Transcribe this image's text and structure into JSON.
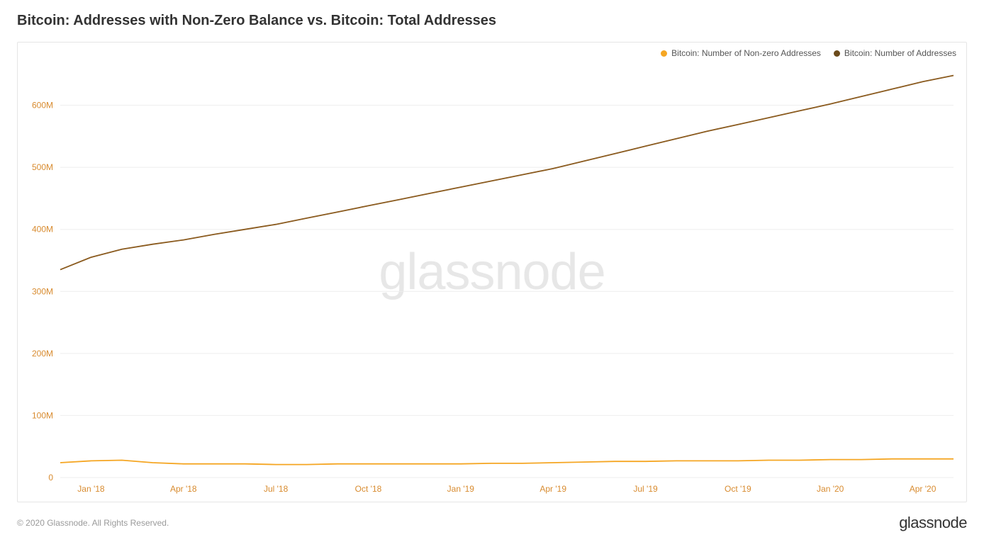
{
  "title": "Bitcoin: Addresses with Non-Zero Balance vs. Bitcoin: Total Addresses",
  "title_fontsize": 20,
  "title_color": "#333333",
  "watermark_text": "glassnode",
  "copyright": "© 2020 Glassnode. All Rights Reserved.",
  "brand": "glassnode",
  "chart": {
    "type": "line",
    "background_color": "#ffffff",
    "border_color": "#e5e5e5",
    "grid_color": "#eeeeee",
    "axis_label_color": "#d88b2f",
    "legend": {
      "position": "top-right",
      "fontsize": 12,
      "items": [
        {
          "label": "Bitcoin: Number of Non-zero Addresses",
          "swatch_color": "#f5a623",
          "swatch_shape": "circle"
        },
        {
          "label": "Bitcoin: Number of Addresses",
          "swatch_color": "#6b4a1b",
          "swatch_shape": "circle"
        }
      ]
    },
    "y_axis": {
      "ylim": [
        0,
        660000000
      ],
      "ticks": [
        0,
        100000000,
        200000000,
        300000000,
        400000000,
        500000000,
        600000000
      ],
      "tick_labels": [
        "0",
        "100M",
        "200M",
        "300M",
        "400M",
        "500M",
        "600M"
      ],
      "tick_fontsize": 12
    },
    "x_axis": {
      "domain_months": [
        "2017-12",
        "2020-05"
      ],
      "tick_months": [
        "2018-01",
        "2018-04",
        "2018-07",
        "2018-10",
        "2019-01",
        "2019-04",
        "2019-07",
        "2019-10",
        "2020-01",
        "2020-04"
      ],
      "tick_labels": [
        "Jan '18",
        "Apr '18",
        "Jul '18",
        "Oct '18",
        "Jan '19",
        "Apr '19",
        "Jul '19",
        "Oct '19",
        "Jan '20",
        "Apr '20"
      ],
      "tick_fontsize": 12
    },
    "series": [
      {
        "name": "Bitcoin: Number of Addresses",
        "color": "#8a5a1e",
        "line_width": 1.8,
        "points": [
          {
            "month": "2017-12",
            "value": 335000000
          },
          {
            "month": "2018-01",
            "value": 355000000
          },
          {
            "month": "2018-02",
            "value": 368000000
          },
          {
            "month": "2018-03",
            "value": 376000000
          },
          {
            "month": "2018-04",
            "value": 383000000
          },
          {
            "month": "2018-05",
            "value": 392000000
          },
          {
            "month": "2018-06",
            "value": 400000000
          },
          {
            "month": "2018-07",
            "value": 408000000
          },
          {
            "month": "2018-08",
            "value": 418000000
          },
          {
            "month": "2018-09",
            "value": 428000000
          },
          {
            "month": "2018-10",
            "value": 438000000
          },
          {
            "month": "2018-11",
            "value": 448000000
          },
          {
            "month": "2018-12",
            "value": 458000000
          },
          {
            "month": "2019-01",
            "value": 468000000
          },
          {
            "month": "2019-02",
            "value": 478000000
          },
          {
            "month": "2019-03",
            "value": 488000000
          },
          {
            "month": "2019-04",
            "value": 498000000
          },
          {
            "month": "2019-05",
            "value": 510000000
          },
          {
            "month": "2019-06",
            "value": 522000000
          },
          {
            "month": "2019-07",
            "value": 534000000
          },
          {
            "month": "2019-08",
            "value": 546000000
          },
          {
            "month": "2019-09",
            "value": 558000000
          },
          {
            "month": "2019-10",
            "value": 569000000
          },
          {
            "month": "2019-11",
            "value": 580000000
          },
          {
            "month": "2019-12",
            "value": 591000000
          },
          {
            "month": "2020-01",
            "value": 602000000
          },
          {
            "month": "2020-02",
            "value": 614000000
          },
          {
            "month": "2020-03",
            "value": 626000000
          },
          {
            "month": "2020-04",
            "value": 638000000
          },
          {
            "month": "2020-05",
            "value": 648000000
          }
        ]
      },
      {
        "name": "Bitcoin: Number of Non-zero Addresses",
        "color": "#f5a623",
        "line_width": 1.8,
        "points": [
          {
            "month": "2017-12",
            "value": 24000000
          },
          {
            "month": "2018-01",
            "value": 27000000
          },
          {
            "month": "2018-02",
            "value": 28000000
          },
          {
            "month": "2018-03",
            "value": 24000000
          },
          {
            "month": "2018-04",
            "value": 22000000
          },
          {
            "month": "2018-05",
            "value": 22000000
          },
          {
            "month": "2018-06",
            "value": 22000000
          },
          {
            "month": "2018-07",
            "value": 21000000
          },
          {
            "month": "2018-08",
            "value": 21000000
          },
          {
            "month": "2018-09",
            "value": 22000000
          },
          {
            "month": "2018-10",
            "value": 22000000
          },
          {
            "month": "2018-11",
            "value": 22000000
          },
          {
            "month": "2018-12",
            "value": 22000000
          },
          {
            "month": "2019-01",
            "value": 22000000
          },
          {
            "month": "2019-02",
            "value": 23000000
          },
          {
            "month": "2019-03",
            "value": 23000000
          },
          {
            "month": "2019-04",
            "value": 24000000
          },
          {
            "month": "2019-05",
            "value": 25000000
          },
          {
            "month": "2019-06",
            "value": 26000000
          },
          {
            "month": "2019-07",
            "value": 26000000
          },
          {
            "month": "2019-08",
            "value": 27000000
          },
          {
            "month": "2019-09",
            "value": 27000000
          },
          {
            "month": "2019-10",
            "value": 27000000
          },
          {
            "month": "2019-11",
            "value": 28000000
          },
          {
            "month": "2019-12",
            "value": 28000000
          },
          {
            "month": "2020-01",
            "value": 29000000
          },
          {
            "month": "2020-02",
            "value": 29000000
          },
          {
            "month": "2020-03",
            "value": 30000000
          },
          {
            "month": "2020-04",
            "value": 30000000
          },
          {
            "month": "2020-05",
            "value": 30000000
          }
        ]
      }
    ]
  }
}
